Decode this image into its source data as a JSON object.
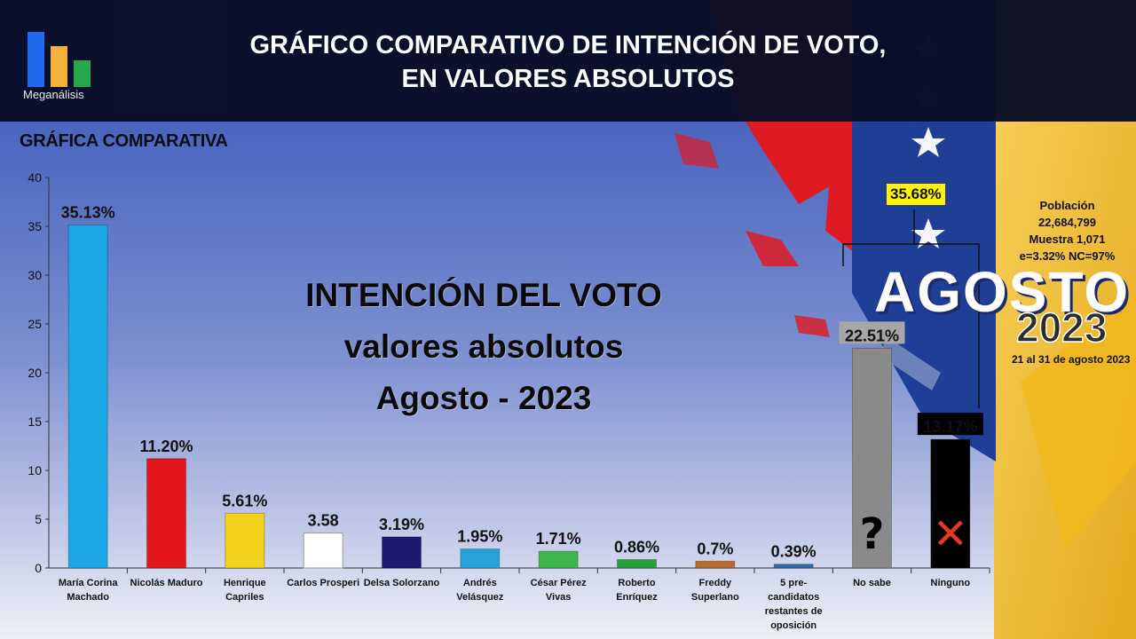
{
  "header": {
    "logo_text": "Meganálisis",
    "title_line1": "GRÁFICO COMPARATIVO DE INTENCIÓN DE VOTO,",
    "title_line2": "EN VALORES ABSOLUTOS"
  },
  "subtitle": "GRÁFICA COMPARATIVA",
  "overlay": {
    "line1": "INTENCIÓN DEL VOTO",
    "line2": "valores absolutos",
    "line3": "Agosto - 2023"
  },
  "combined_label": "35.68%",
  "info": {
    "line1": "Población",
    "line2": "22,684,799",
    "line3": "Muestra 1,071",
    "line4": "e=3.32%  NC=97%"
  },
  "badge": {
    "month": "AGOSTO",
    "year": "2023",
    "range": "21 al 31 de agosto 2023"
  },
  "colors": {
    "header_bg": "#080e26",
    "flag_red": "#e01a22",
    "flag_yellow": "#f5c842",
    "flag_blue": "#1f3f96"
  },
  "chart_data": {
    "type": "bar",
    "ylim": [
      0,
      40
    ],
    "yticks": [
      0,
      5,
      10,
      15,
      20,
      25,
      30,
      35,
      40
    ],
    "categories": [
      [
        "María Corina",
        "Machado"
      ],
      [
        "Nicolás Maduro"
      ],
      [
        "Henrique",
        "Capriles"
      ],
      [
        "Carlos Prosperi"
      ],
      [
        "Delsa Solorzano"
      ],
      [
        "Andrés",
        "Velásquez"
      ],
      [
        "César Pérez",
        "Vivas"
      ],
      [
        "Roberto",
        "Enríquez"
      ],
      [
        "Freddy",
        "Superlano"
      ],
      [
        "5 pre-",
        "candidatos",
        "restantes de",
        "oposición"
      ],
      [
        "No sabe"
      ],
      [
        "Ninguno"
      ]
    ],
    "values": [
      35.13,
      11.2,
      5.61,
      3.58,
      3.19,
      1.95,
      1.71,
      0.86,
      0.7,
      0.39,
      22.51,
      13.17
    ],
    "labels": [
      "35.13%",
      "11.20%",
      "5.61%",
      "3.58",
      "3.19%",
      "1.95%",
      "1.71%",
      "0.86%",
      "0.7%",
      "0.39%",
      "22.51%",
      "13.17%"
    ],
    "bar_colors": [
      "#1aa7e6",
      "#e3161c",
      "#f2d21b",
      "#ffffff",
      "#1a1a6e",
      "#27a2d8",
      "#3cb54a",
      "#25a03a",
      "#b86a2a",
      "#2c6aa8",
      "#8a8a8a",
      "#000000"
    ],
    "bar_marks": [
      "",
      "",
      "",
      "",
      "",
      "",
      "",
      "",
      "",
      "",
      "?",
      "✕"
    ]
  }
}
